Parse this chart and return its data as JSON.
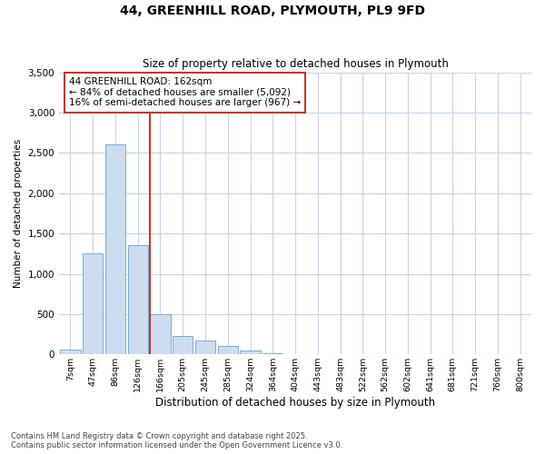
{
  "title": "44, GREENHILL ROAD, PLYMOUTH, PL9 9FD",
  "subtitle": "Size of property relative to detached houses in Plymouth",
  "xlabel": "Distribution of detached houses by size in Plymouth",
  "ylabel": "Number of detached properties",
  "categories": [
    "7sqm",
    "47sqm",
    "86sqm",
    "126sqm",
    "166sqm",
    "205sqm",
    "245sqm",
    "285sqm",
    "324sqm",
    "364sqm",
    "404sqm",
    "443sqm",
    "483sqm",
    "522sqm",
    "562sqm",
    "602sqm",
    "641sqm",
    "681sqm",
    "721sqm",
    "760sqm",
    "800sqm"
  ],
  "values": [
    55,
    1250,
    2600,
    1350,
    500,
    230,
    175,
    110,
    50,
    20,
    8,
    5,
    3,
    0,
    0,
    0,
    0,
    0,
    0,
    0,
    0
  ],
  "bar_color": "#cddcef",
  "bar_edge_color": "#7bafd4",
  "vline_color": "#c0392b",
  "annotation_text": "44 GREENHILL ROAD: 162sqm\n← 84% of detached houses are smaller (5,092)\n16% of semi-detached houses are larger (967) →",
  "annotation_box_color": "white",
  "annotation_box_edge_color": "#c0392b",
  "ylim": [
    0,
    3500
  ],
  "yticks": [
    0,
    500,
    1000,
    1500,
    2000,
    2500,
    3000,
    3500
  ],
  "footer_line1": "Contains HM Land Registry data © Crown copyright and database right 2025.",
  "footer_line2": "Contains public sector information licensed under the Open Government Licence v3.0.",
  "bg_color": "#ffffff",
  "grid_color": "#c5d5e8"
}
